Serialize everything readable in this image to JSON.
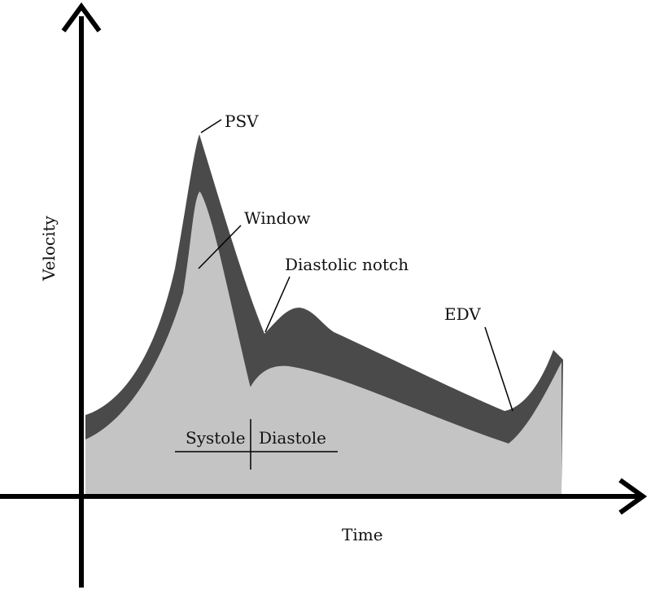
{
  "axes": {
    "y_label": "Velocity",
    "x_label": "Time"
  },
  "annotations": {
    "psv": "PSV",
    "window": "Window",
    "diastolic_notch": "Diastolic notch",
    "edv": "EDV",
    "systole": "Systole",
    "diastole": "Diastole"
  },
  "colors": {
    "envelope": "#4a4a4a",
    "spectrum_fill": "#c4c4c4",
    "axis": "#000000"
  }
}
